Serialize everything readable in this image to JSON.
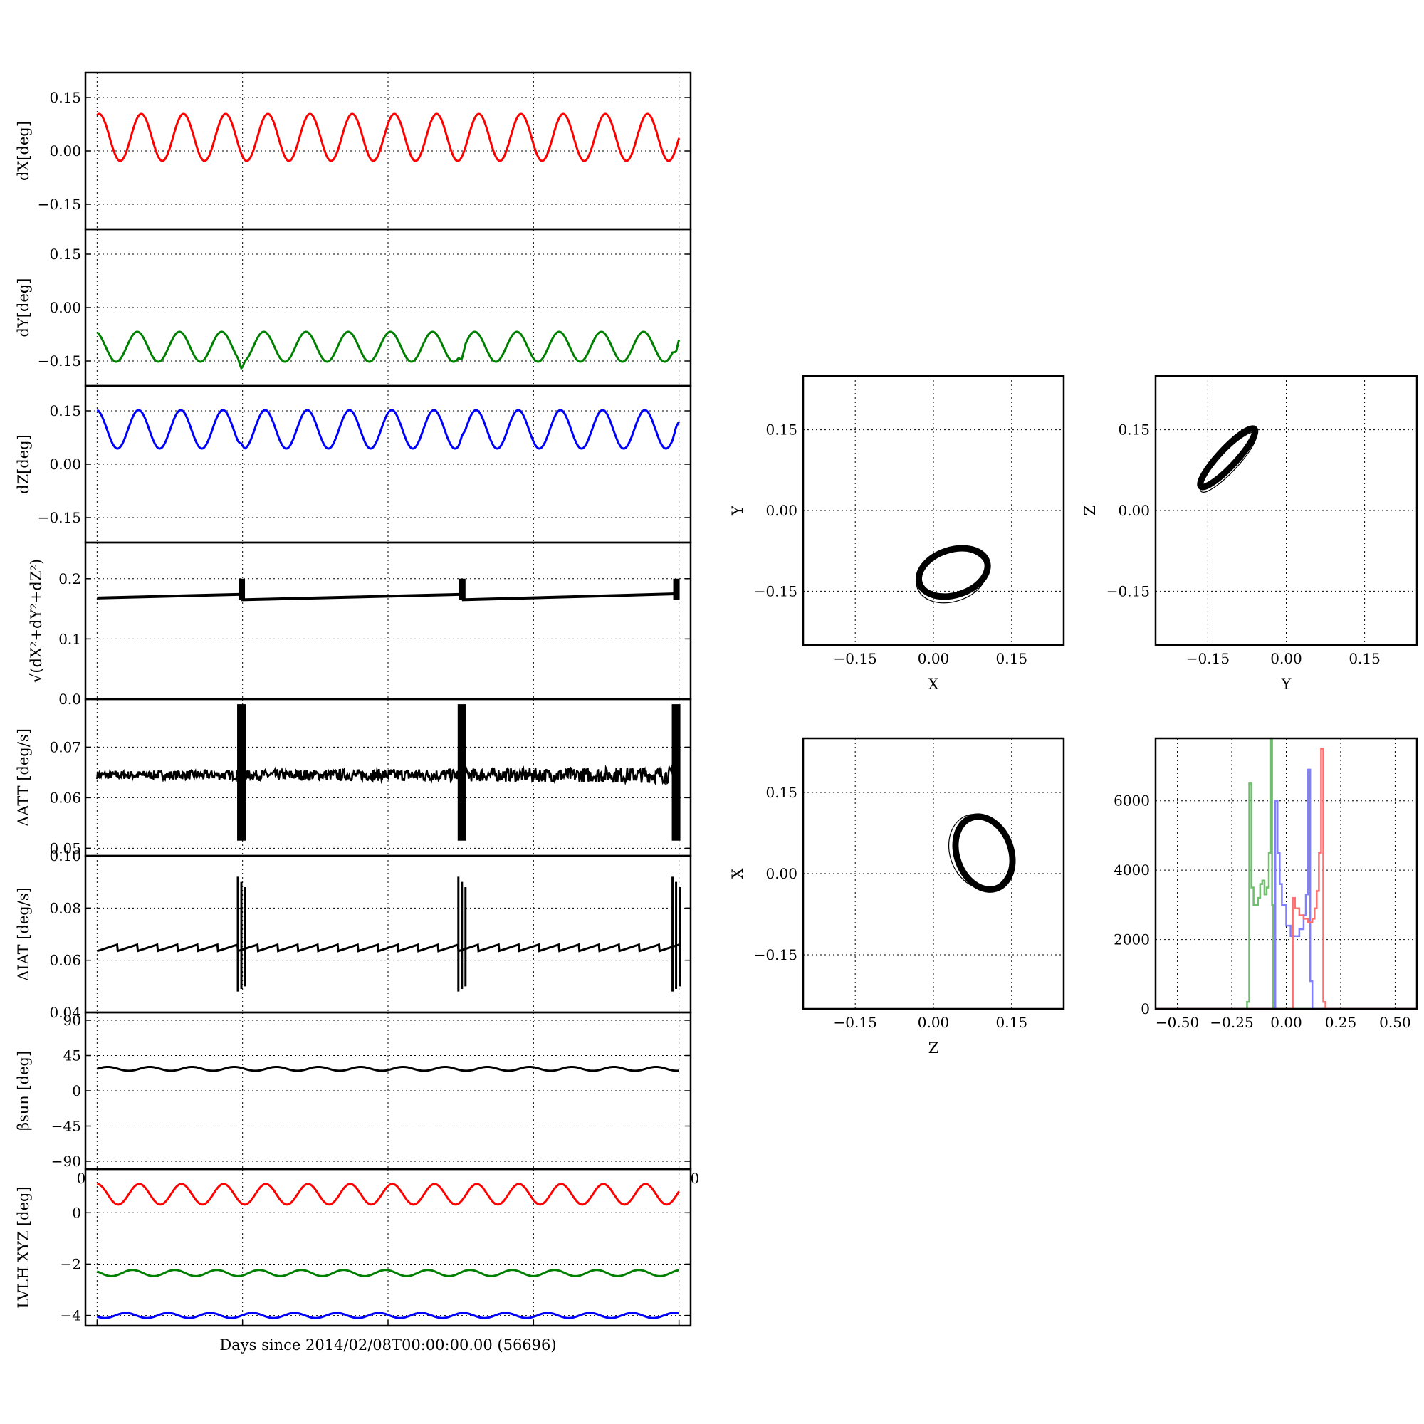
{
  "figure": {
    "xlabel": "Days since 2014/02/08T00:00:00.00 (56696)"
  },
  "timeseries": {
    "x_ticks": [
      "",
      "",
      "",
      "",
      ""
    ],
    "panels": [
      {
        "id": "dX",
        "ylabel": "dX[deg]",
        "yticks": [
          "0.15",
          "0.00",
          "−0.15"
        ]
      },
      {
        "id": "dY",
        "ylabel": "dY[deg]",
        "yticks": [
          "0.15",
          "0.00",
          "−0.15"
        ]
      },
      {
        "id": "dZ",
        "ylabel": "dZ[deg]",
        "yticks": [
          "0.15",
          "0.00",
          "−0.15"
        ]
      },
      {
        "id": "norm",
        "ylabel": "√(dX²+dY²+dZ²)",
        "yticks": [
          "0.2",
          "0.1",
          "0.0"
        ]
      },
      {
        "id": "datt",
        "ylabel": "ΔATT [deg/s]",
        "yticks": [
          "0.07",
          "0.06",
          "0.05"
        ]
      },
      {
        "id": "diat",
        "ylabel": "ΔIAT [deg/s]",
        "yticks": [
          "0.10",
          "0.08",
          "0.06",
          "0.04"
        ]
      },
      {
        "id": "beta",
        "ylabel": "βsun [deg]",
        "yticks": [
          "90",
          "45",
          "0",
          "−45",
          "−90"
        ]
      },
      {
        "id": "lvlh",
        "ylabel": "LVLH XYZ [deg]",
        "yticks": [
          "0",
          "−2",
          "−4"
        ]
      }
    ],
    "overflow_labels": [
      "0",
      "0"
    ]
  },
  "chart_data": [
    {
      "type": "line",
      "id": "dX",
      "ylabel": "dX[deg]",
      "ylim": [
        -0.22,
        0.22
      ],
      "xlim": [
        -0.02,
        1.02
      ],
      "color": "#ff0000",
      "period": 0.0725,
      "mean": 0.038,
      "amplitude": 0.066,
      "x_range": [
        0,
        1
      ],
      "grid": true
    },
    {
      "type": "line",
      "id": "dY",
      "ylabel": "dY[deg]",
      "ylim": [
        -0.22,
        0.22
      ],
      "xlim": [
        -0.02,
        1.02
      ],
      "color": "#008000",
      "period": 0.0725,
      "mean": -0.11,
      "amplitude": 0.042,
      "dips_at_x": [
        0.248,
        0.627,
        0.995
      ],
      "grid": true
    },
    {
      "type": "line",
      "id": "dZ",
      "ylabel": "dZ[deg]",
      "ylim": [
        -0.22,
        0.22
      ],
      "xlim": [
        -0.02,
        1.02
      ],
      "color": "#0000ff",
      "period": 0.0725,
      "mean": 0.098,
      "amplitude": 0.054,
      "bumps_at_x": [
        0.248,
        0.627,
        0.995
      ],
      "grid": true
    },
    {
      "type": "line",
      "id": "norm",
      "ylabel": "√(dX²+dY²+dZ²)",
      "ylim": [
        0.0,
        0.26
      ],
      "xlim": [
        -0.02,
        1.02
      ],
      "color": "#000000",
      "segments": [
        [
          0.0,
          0.168,
          0.248,
          0.174
        ],
        [
          0.248,
          0.165,
          0.627,
          0.174
        ],
        [
          0.627,
          0.165,
          1.0,
          0.175
        ]
      ],
      "spikes_at_x": [
        0.248,
        0.627,
        0.995
      ],
      "spike_top": 0.2,
      "grid": true
    },
    {
      "type": "line",
      "id": "datt",
      "ylabel": "ΔATT [deg/s]",
      "ylim": [
        0.0485,
        0.0795
      ],
      "xlim": [
        -0.02,
        1.02
      ],
      "color": "#000000",
      "baseline": 0.0645,
      "noise": 0.0008,
      "bursts_at_x": [
        0.248,
        0.627,
        0.995
      ],
      "burst_range": [
        0.0515,
        0.0785
      ],
      "grid": true
    },
    {
      "type": "line",
      "id": "diat",
      "ylabel": "ΔIAT [deg/s]",
      "ylim": [
        0.04,
        0.1
      ],
      "xlim": [
        -0.02,
        1.02
      ],
      "color": "#000000",
      "sawtooth_low": 0.0635,
      "sawtooth_high": 0.066,
      "sawtooth_period": 0.0345,
      "bursts_at_x": [
        0.248,
        0.627,
        0.995
      ],
      "burst_range": [
        0.048,
        0.092
      ],
      "grid": true
    },
    {
      "type": "line",
      "id": "beta",
      "ylabel": "βsun [deg]",
      "ylim": [
        -100,
        100
      ],
      "xlim": [
        -0.02,
        1.02
      ],
      "color": "#000000",
      "mean": 28,
      "amplitude": 2.5,
      "period": 0.0725,
      "grid": true
    },
    {
      "type": "line",
      "id": "lvlh",
      "ylabel": "LVLH XYZ [deg]",
      "ylim": [
        -4.4,
        1.7
      ],
      "xlim": [
        -0.02,
        1.02
      ],
      "series": [
        {
          "color": "#ff0000",
          "mean": 0.72,
          "amplitude": 0.4,
          "period": 0.0725
        },
        {
          "color": "#008000",
          "mean": -2.35,
          "amplitude": 0.12,
          "period": 0.0725
        },
        {
          "color": "#0000ff",
          "mean": -4.0,
          "amplitude": 0.1,
          "period": 0.0725
        }
      ],
      "grid": true
    },
    {
      "type": "scatter",
      "id": "xy",
      "xlabel": "X",
      "ylabel": "Y",
      "xlim": [
        -0.25,
        0.25
      ],
      "ylim": [
        -0.25,
        0.25
      ],
      "xticks": [
        "−0.15",
        "0.00",
        "0.15"
      ],
      "yticks": [
        "0.15",
        "0.00",
        "−0.15"
      ],
      "ellipse": {
        "cx": 0.038,
        "cy": -0.115,
        "rx": 0.068,
        "ry": 0.042,
        "angle_deg": 18
      }
    },
    {
      "type": "scatter",
      "id": "yz",
      "xlabel": "Y",
      "ylabel": "Z",
      "xlim": [
        -0.25,
        0.25
      ],
      "ylim": [
        -0.25,
        0.25
      ],
      "xticks": [
        "−0.15",
        "0.00",
        "0.15"
      ],
      "yticks": [
        "0.15",
        "0.00",
        "−0.15"
      ],
      "ellipse": {
        "cx": -0.112,
        "cy": 0.098,
        "rx": 0.075,
        "ry": 0.016,
        "angle_deg": 47
      }
    },
    {
      "type": "scatter",
      "id": "zx",
      "xlabel": "Z",
      "ylabel": "X",
      "xlim": [
        -0.25,
        0.25
      ],
      "ylim": [
        -0.25,
        0.25
      ],
      "xticks": [
        "−0.15",
        "0.00",
        "0.15"
      ],
      "yticks": [
        "0.15",
        "0.00",
        "−0.15"
      ],
      "ellipse": {
        "cx": 0.097,
        "cy": 0.038,
        "rx": 0.072,
        "ry": 0.05,
        "angle_deg": -70
      }
    },
    {
      "type": "line",
      "id": "hist",
      "xlim": [
        -0.6,
        0.6
      ],
      "ylim": [
        0,
        7800
      ],
      "xticks": [
        "−0.50",
        "−0.25",
        "0.00",
        "0.25",
        "0.50"
      ],
      "yticks": [
        "6000",
        "4000",
        "2000",
        "0"
      ],
      "series": [
        {
          "color": "#6fbf6f",
          "x": [
            -0.6,
            -0.2,
            -0.18,
            -0.17,
            -0.16,
            -0.15,
            -0.14,
            -0.13,
            -0.12,
            -0.11,
            -0.1,
            -0.09,
            -0.08,
            -0.07,
            -0.065,
            -0.06,
            0.6
          ],
          "y": [
            0,
            0,
            200,
            6500,
            3500,
            3000,
            3000,
            3200,
            3600,
            3700,
            3300,
            3500,
            4500,
            7800,
            3000,
            0,
            0
          ]
        },
        {
          "color": "#7f7fff",
          "x": [
            -0.6,
            -0.07,
            -0.05,
            -0.04,
            -0.03,
            -0.02,
            0.0,
            0.02,
            0.04,
            0.06,
            0.08,
            0.09,
            0.1,
            0.11,
            0.12,
            0.6
          ],
          "y": [
            0,
            0,
            6000,
            4500,
            3600,
            3000,
            2400,
            2100,
            2100,
            2300,
            2700,
            3300,
            6900,
            800,
            0,
            0
          ]
        },
        {
          "color": "#ff6f6f",
          "x": [
            -0.6,
            0.02,
            0.03,
            0.04,
            0.06,
            0.08,
            0.1,
            0.12,
            0.13,
            0.14,
            0.15,
            0.16,
            0.17,
            0.18,
            0.6
          ],
          "y": [
            0,
            0,
            3200,
            2900,
            2700,
            2600,
            2500,
            2600,
            2900,
            3400,
            4500,
            7500,
            200,
            0,
            0
          ]
        }
      ]
    }
  ]
}
